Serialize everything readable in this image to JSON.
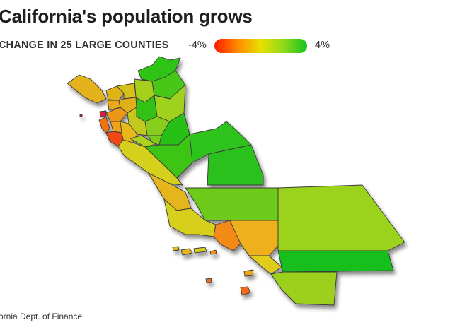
{
  "header": {
    "title": "California's population grows",
    "subtitle": "CHANGE IN 25 LARGE COUNTIES"
  },
  "legend": {
    "min_label": "-4%",
    "max_label": "4%",
    "min_color": "#ff1a00",
    "mid_color": "#e8e000",
    "max_color": "#12c41a"
  },
  "footer": {
    "source": "ornia Dept. of Finance"
  }
}
